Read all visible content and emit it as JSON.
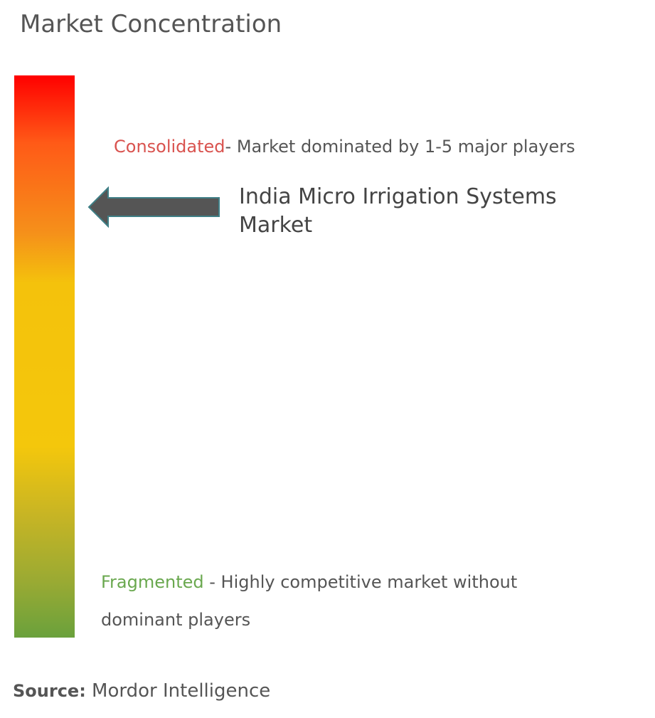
{
  "header": {
    "title": "Market Concentration"
  },
  "scale": {
    "top_color": "#ff0000",
    "middle_color": "#f4c20c",
    "bottom_color": "#6aa13c"
  },
  "consolidated": {
    "term": "Consolidated",
    "description": "- Market dominated by 1-5 major players",
    "color": "#d9534f"
  },
  "fragmented": {
    "term": "Fragmented",
    "description": " - Highly competitive market without dominant players",
    "color": "#6aa84f"
  },
  "market": {
    "label": "India Micro Irrigation Systems Market",
    "concentration_level": "consolidated",
    "arrow_color": "#555555"
  },
  "source": {
    "key": "Source:",
    "value": " Mordor Intelligence"
  }
}
